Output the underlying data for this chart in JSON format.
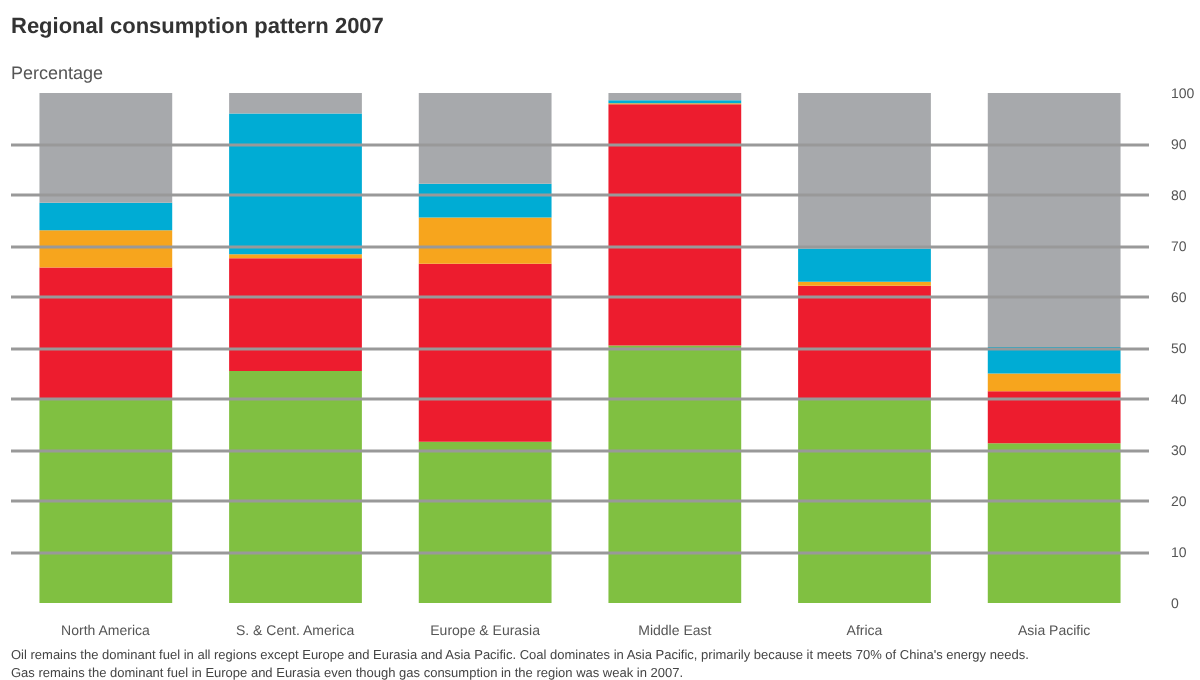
{
  "chart_data": {
    "type": "bar",
    "stacked": true,
    "title": "Regional consumption pattern 2007",
    "subtitle": "Percentage",
    "categories": [
      "North America",
      "S. & Cent. America",
      "Europe & Eurasia",
      "Middle East",
      "Africa",
      "Asia Pacific"
    ],
    "series": [
      {
        "color": "#80c041",
        "values": [
          40,
          45.5,
          31.6,
          50.5,
          40,
          31.3
        ]
      },
      {
        "color": "#ed1c2e",
        "values": [
          25.8,
          22.1,
          34.9,
          47.3,
          22.2,
          10.2
        ]
      },
      {
        "color": "#f7a51d",
        "values": [
          7.3,
          0.8,
          9.1,
          0.2,
          0.8,
          3.5
        ]
      },
      {
        "color": "#00acd4",
        "values": [
          5.4,
          27.6,
          6.6,
          0.6,
          6.5,
          5.2
        ]
      },
      {
        "color": "#a7a9ac",
        "values": [
          21.5,
          4,
          17.8,
          1.4,
          30.5,
          49.8
        ]
      }
    ],
    "ylim": [
      0,
      100
    ],
    "yticks": [
      0,
      10,
      20,
      30,
      40,
      50,
      60,
      70,
      80,
      90,
      100
    ],
    "grid": "y",
    "annotations": [
      "Oil remains the dominant fuel in all regions except Europe and Eurasia and Asia Pacific. Coal dominates in Asia Pacific, primarily because it meets 70% of China's energy needs.",
      "Gas remains the dominant fuel in Europe and Eurasia even though gas consumption in the region was weak in 2007."
    ]
  }
}
